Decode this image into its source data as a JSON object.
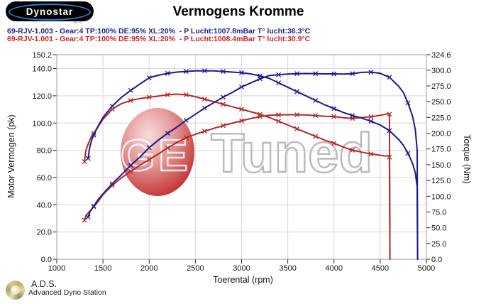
{
  "header": {
    "logo_text": "Dynostar",
    "logo_subtext": "..se m",
    "run_blue": "69-RJV-1.003 - Gear:4 TP:100% DE:95% XL:20%  - P Lucht:1007.8mBar T° lucht:36.3°C",
    "run_red": "69-RJV-1.001 - Gear:4 TP:100% DE:95% XL:20%  - P Lucht:1008.4mBar T° lucht:30.9°C"
  },
  "footer": {
    "brand": "A.D.S.",
    "brand_sub": "Advanced Dyno Station"
  },
  "watermark": {
    "text_left": "GE",
    "text_right": "Tuned",
    "ball_color": "#c23030"
  },
  "colors": {
    "run_blue": "#1a1a8f",
    "run_red": "#b32828",
    "grid": "#d8d8de",
    "axis_border": "#9a9aa6",
    "tick_text": "#111111"
  },
  "chart_data": {
    "type": "line",
    "title": "Vermogens Kromme",
    "xlabel": "Toerental (rpm)",
    "ylabel_left": "Motor Vermogen (pk)",
    "ylabel_right": "Torque (Nm)",
    "x_range": [
      1000,
      5000
    ],
    "y_left_range": [
      0,
      150.2
    ],
    "y_right_range": [
      0,
      324.6
    ],
    "x_ticks": [
      [
        1000,
        "1000"
      ],
      [
        1500,
        "1500"
      ],
      [
        2000,
        "2000"
      ],
      [
        2500,
        "2500"
      ],
      [
        3000,
        "3000"
      ],
      [
        3500,
        "3500"
      ],
      [
        4000,
        "4000"
      ],
      [
        4500,
        "4500"
      ],
      [
        5000,
        "5000"
      ]
    ],
    "y_left_ticks": [
      [
        150.2,
        "150.2"
      ],
      [
        140,
        "140.0"
      ],
      [
        120,
        "120.0"
      ],
      [
        100,
        "100.0"
      ],
      [
        80,
        "80.0"
      ],
      [
        60,
        "60.0"
      ],
      [
        40,
        "40.0"
      ],
      [
        20,
        "20.0"
      ],
      [
        0,
        "0.0"
      ]
    ],
    "y_right_ticks": [
      [
        324.6,
        "324.6"
      ],
      [
        300,
        "300.0"
      ],
      [
        275,
        "275.0"
      ],
      [
        250,
        "250.0"
      ],
      [
        225,
        "225.0"
      ],
      [
        200,
        "200.0"
      ],
      [
        175,
        "175.0"
      ],
      [
        150,
        "150.0"
      ],
      [
        125,
        "125.0"
      ],
      [
        100,
        "100.0"
      ],
      [
        75,
        "75.0"
      ],
      [
        50,
        "50.0"
      ],
      [
        25,
        "25.0"
      ],
      [
        0,
        "0.0"
      ]
    ],
    "grid": {
      "x_values": [
        1500,
        2000,
        2500,
        3000,
        3500,
        4000,
        4500
      ],
      "y_left_values": [
        20,
        40,
        60,
        80,
        100,
        120,
        140
      ]
    },
    "legend": "none",
    "series": [
      {
        "name": "torque-original",
        "run": "69-RJV-1.001",
        "axis": "right",
        "color": "#b32828",
        "unit": "Nm",
        "points": [
          [
            1300,
            155
          ],
          [
            1310,
            168
          ],
          [
            1320,
            175
          ],
          [
            1340,
            183
          ],
          [
            1360,
            190
          ],
          [
            1380,
            196
          ],
          [
            1400,
            200
          ],
          [
            1450,
            211
          ],
          [
            1500,
            222
          ],
          [
            1600,
            238
          ],
          [
            1700,
            247
          ],
          [
            1800,
            252
          ],
          [
            1900,
            255
          ],
          [
            2000,
            257
          ],
          [
            2100,
            259
          ],
          [
            2200,
            261
          ],
          [
            2300,
            262
          ],
          [
            2400,
            261
          ],
          [
            2500,
            258
          ],
          [
            2600,
            254
          ],
          [
            2700,
            250
          ],
          [
            2800,
            246
          ],
          [
            2900,
            242
          ],
          [
            3000,
            238
          ],
          [
            3100,
            234
          ],
          [
            3200,
            230
          ],
          [
            3300,
            225
          ],
          [
            3400,
            219
          ],
          [
            3500,
            213
          ],
          [
            3600,
            207
          ],
          [
            3700,
            201
          ],
          [
            3800,
            195
          ],
          [
            3900,
            189
          ],
          [
            4000,
            184
          ],
          [
            4100,
            178
          ],
          [
            4200,
            173
          ],
          [
            4300,
            170
          ],
          [
            4400,
            167
          ],
          [
            4500,
            165
          ],
          [
            4550,
            164
          ],
          [
            4590,
            164
          ],
          [
            4600,
            162
          ],
          [
            4605,
            0
          ]
        ]
      },
      {
        "name": "power-original",
        "run": "69-RJV-1.001",
        "axis": "left",
        "color": "#b32828",
        "unit": "pk",
        "points": [
          [
            1300,
            28.7
          ],
          [
            1310,
            31
          ],
          [
            1320,
            32.5
          ],
          [
            1340,
            34
          ],
          [
            1360,
            35.5
          ],
          [
            1380,
            37
          ],
          [
            1400,
            38.5
          ],
          [
            1450,
            42.5
          ],
          [
            1500,
            47.4
          ],
          [
            1600,
            54.2
          ],
          [
            1700,
            59.8
          ],
          [
            1800,
            64.6
          ],
          [
            1900,
            69
          ],
          [
            2000,
            73.2
          ],
          [
            2100,
            77.4
          ],
          [
            2200,
            81.7
          ],
          [
            2300,
            85.8
          ],
          [
            2400,
            89.2
          ],
          [
            2500,
            91.8
          ],
          [
            2600,
            94
          ],
          [
            2700,
            96.1
          ],
          [
            2800,
            98.1
          ],
          [
            2900,
            99.9
          ],
          [
            3000,
            101.7
          ],
          [
            3100,
            103.3
          ],
          [
            3200,
            104.8
          ],
          [
            3300,
            105.7
          ],
          [
            3400,
            106
          ],
          [
            3500,
            106.1
          ],
          [
            3600,
            106.1
          ],
          [
            3700,
            105.9
          ],
          [
            3800,
            105.5
          ],
          [
            3900,
            105
          ],
          [
            4000,
            104.8
          ],
          [
            4100,
            103.9
          ],
          [
            4200,
            103.4
          ],
          [
            4300,
            104.1
          ],
          [
            4400,
            104.6
          ],
          [
            4500,
            105.7
          ],
          [
            4550,
            106.3
          ],
          [
            4590,
            107
          ],
          [
            4600,
            106.5
          ],
          [
            4605,
            0
          ]
        ]
      },
      {
        "name": "torque-tuned",
        "run": "69-RJV-1.003",
        "axis": "right",
        "color": "#1a1a8f",
        "unit": "Nm",
        "points": [
          [
            1340,
            160
          ],
          [
            1350,
            172
          ],
          [
            1360,
            180
          ],
          [
            1380,
            190
          ],
          [
            1400,
            197
          ],
          [
            1450,
            212
          ],
          [
            1500,
            225
          ],
          [
            1600,
            243
          ],
          [
            1700,
            257
          ],
          [
            1800,
            268
          ],
          [
            1900,
            278
          ],
          [
            2000,
            288
          ],
          [
            2100,
            292
          ],
          [
            2200,
            295
          ],
          [
            2300,
            297
          ],
          [
            2400,
            298
          ],
          [
            2500,
            299
          ],
          [
            2600,
            299
          ],
          [
            2700,
            299
          ],
          [
            2800,
            298
          ],
          [
            2900,
            297
          ],
          [
            3000,
            296
          ],
          [
            3100,
            294
          ],
          [
            3200,
            291
          ],
          [
            3300,
            287
          ],
          [
            3400,
            280
          ],
          [
            3500,
            273
          ],
          [
            3600,
            266
          ],
          [
            3700,
            259
          ],
          [
            3800,
            252
          ],
          [
            3900,
            245
          ],
          [
            4000,
            239
          ],
          [
            4100,
            233
          ],
          [
            4200,
            228
          ],
          [
            4300,
            224
          ],
          [
            4400,
            219
          ],
          [
            4500,
            213
          ],
          [
            4600,
            204
          ],
          [
            4700,
            190
          ],
          [
            4750,
            181
          ],
          [
            4800,
            168
          ],
          [
            4850,
            152
          ],
          [
            4880,
            137
          ],
          [
            4900,
            115
          ],
          [
            4905,
            0
          ]
        ]
      },
      {
        "name": "power-tuned",
        "run": "69-RJV-1.003",
        "axis": "left",
        "color": "#1a1a8f",
        "unit": "pk",
        "points": [
          [
            1340,
            31
          ],
          [
            1350,
            33
          ],
          [
            1360,
            35
          ],
          [
            1380,
            37
          ],
          [
            1400,
            39
          ],
          [
            1450,
            44
          ],
          [
            1500,
            48
          ],
          [
            1600,
            55.5
          ],
          [
            1700,
            62
          ],
          [
            1800,
            69
          ],
          [
            1900,
            75
          ],
          [
            2000,
            82
          ],
          [
            2100,
            87.5
          ],
          [
            2200,
            92.5
          ],
          [
            2300,
            97
          ],
          [
            2400,
            102
          ],
          [
            2500,
            106.5
          ],
          [
            2600,
            111
          ],
          [
            2700,
            115
          ],
          [
            2800,
            119
          ],
          [
            2900,
            122.5
          ],
          [
            3000,
            126.5
          ],
          [
            3100,
            129.5
          ],
          [
            3200,
            132.5
          ],
          [
            3300,
            134.9
          ],
          [
            3400,
            135.5
          ],
          [
            3500,
            136
          ],
          [
            3600,
            136.3
          ],
          [
            3700,
            136.4
          ],
          [
            3800,
            136.3
          ],
          [
            3900,
            136.1
          ],
          [
            4000,
            136.1
          ],
          [
            4100,
            136
          ],
          [
            4200,
            136.3
          ],
          [
            4300,
            137.2
          ],
          [
            4400,
            137.4
          ],
          [
            4500,
            136.5
          ],
          [
            4600,
            133.6
          ],
          [
            4700,
            127
          ],
          [
            4750,
            122.5
          ],
          [
            4800,
            114.8
          ],
          [
            4850,
            105
          ],
          [
            4880,
            95
          ],
          [
            4900,
            80
          ],
          [
            4905,
            0
          ]
        ]
      }
    ]
  }
}
